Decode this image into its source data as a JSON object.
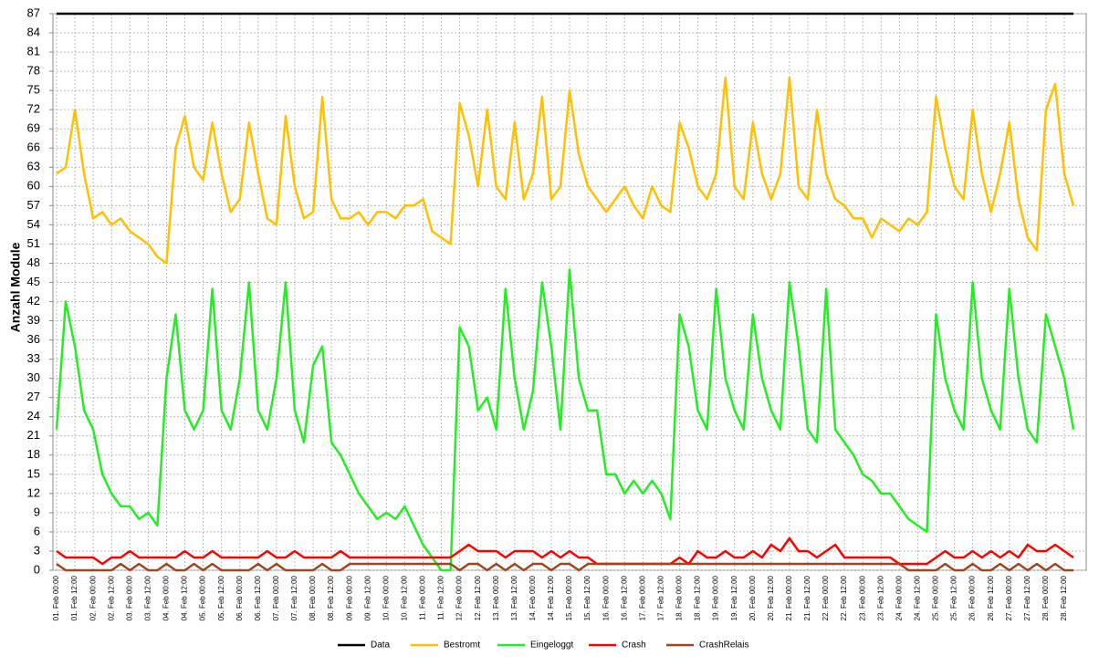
{
  "chart_data": {
    "type": "line",
    "y_label": "Anzahl Module",
    "x": [
      "01. Feb 00:00",
      null,
      "01. Feb 12:00",
      null,
      "02. Feb 00:00",
      null,
      "02. Feb 12:00",
      null,
      "03. Feb 00:00",
      null,
      "03. Feb 12:00",
      null,
      "04. Feb 00:00",
      null,
      "04. Feb 12:00",
      null,
      "05. Feb 00:00",
      null,
      "05. Feb 12:00",
      null,
      "06. Feb 00:00",
      null,
      "06. Feb 12:00",
      null,
      "07. Feb 00:00",
      null,
      "07. Feb 12:00",
      null,
      "08. Feb 00:00",
      null,
      "08. Feb 12:00",
      null,
      "09. Feb 00:00",
      null,
      "09. Feb 12:00",
      null,
      "10. Feb 00:00",
      null,
      "10. Feb 12:00",
      null,
      "11. Feb 00:00",
      null,
      "11. Feb 12:00",
      null,
      "12. Feb 00:00",
      null,
      "12. Feb 12:00",
      null,
      "13. Feb 00:00",
      null,
      "13. Feb 12:00",
      null,
      "14. Feb 00:00",
      null,
      "14. Feb 12:00",
      null,
      "15. Feb 00:00",
      null,
      "15. Feb 12:00",
      null,
      "16. Feb 00:00",
      null,
      "16. Feb 12:00",
      null,
      "17. Feb 00:00",
      null,
      "17. Feb 12:00",
      null,
      "18. Feb 00:00",
      null,
      "18. Feb 12:00",
      null,
      "19. Feb 00:00",
      null,
      "19. Feb 12:00",
      null,
      "20. Feb 00:00",
      null,
      "20. Feb 12:00",
      null,
      "21. Feb 00:00",
      null,
      "21. Feb 12:00",
      null,
      "22. Feb 00:00",
      null,
      "22. Feb 12:00",
      null,
      "23. Feb 00:00",
      null,
      "23. Feb 12:00",
      null,
      "24. Feb 00:00",
      null,
      "24. Feb 12:00",
      null,
      "25. Feb 00:00",
      null,
      "25. Feb 12:00",
      null,
      "26. Feb 00:00",
      null,
      "26. Feb 12:00",
      null,
      "27. Feb 00:00",
      null,
      "27. Feb 12:00",
      null,
      "28. Feb 00:00",
      null,
      "28. Feb 12:00",
      null
    ],
    "ylim": [
      0,
      87
    ],
    "yticks": [
      0,
      3,
      6,
      9,
      12,
      15,
      18,
      21,
      24,
      27,
      30,
      33,
      36,
      39,
      42,
      45,
      48,
      51,
      54,
      57,
      60,
      63,
      66,
      69,
      72,
      75,
      78,
      81,
      84,
      87
    ],
    "grid": true,
    "legend": "bottom",
    "series": [
      {
        "name": "Data",
        "color": "#000000",
        "values": [
          87,
          87,
          87,
          87,
          87,
          87,
          87,
          87,
          87,
          87,
          87,
          87,
          87,
          87,
          87,
          87,
          87,
          87,
          87,
          87,
          87,
          87,
          87,
          87,
          87,
          87,
          87,
          87,
          87,
          87,
          87,
          87,
          87,
          87,
          87,
          87,
          87,
          87,
          87,
          87,
          87,
          87,
          87,
          87,
          87,
          87,
          87,
          87,
          87,
          87,
          87,
          87,
          87,
          87,
          87,
          87,
          87,
          87,
          87,
          87,
          87,
          87,
          87,
          87,
          87,
          87,
          87,
          87,
          87,
          87,
          87,
          87,
          87,
          87,
          87,
          87,
          87,
          87,
          87,
          87,
          87,
          87,
          87,
          87,
          87,
          87,
          87,
          87,
          87,
          87,
          87,
          87,
          87,
          87,
          87,
          87,
          87,
          87,
          87,
          87,
          87,
          87,
          87,
          87,
          87,
          87,
          87,
          87,
          87,
          87,
          87,
          87
        ]
      },
      {
        "name": "Bestromt",
        "color": "#ffc000",
        "values": [
          62,
          63,
          72,
          62,
          55,
          56,
          54,
          55,
          53,
          52,
          51,
          49,
          48,
          66,
          71,
          63,
          61,
          70,
          62,
          56,
          58,
          70,
          62,
          55,
          54,
          71,
          60,
          55,
          56,
          74,
          58,
          55,
          55,
          56,
          54,
          56,
          56,
          55,
          57,
          57,
          58,
          53,
          52,
          51,
          73,
          68,
          60,
          72,
          60,
          58,
          70,
          58,
          62,
          74,
          58,
          60,
          75,
          65,
          60,
          58,
          56,
          58,
          60,
          57,
          55,
          60,
          57,
          56,
          70,
          66,
          60,
          58,
          62,
          77,
          60,
          58,
          70,
          62,
          58,
          62,
          77,
          60,
          58,
          72,
          62,
          58,
          57,
          55,
          55,
          52,
          55,
          54,
          53,
          55,
          54,
          56,
          74,
          66,
          60,
          58,
          72,
          62,
          56,
          62,
          70,
          58,
          52,
          50,
          72,
          76,
          62,
          57
        ]
      },
      {
        "name": "Eingeloggt",
        "color": "#22ee22",
        "values": [
          22,
          42,
          35,
          25,
          22,
          15,
          12,
          10,
          10,
          8,
          9,
          7,
          30,
          40,
          25,
          22,
          25,
          44,
          25,
          22,
          30,
          45,
          25,
          22,
          30,
          45,
          25,
          20,
          32,
          35,
          20,
          18,
          15,
          12,
          10,
          8,
          9,
          8,
          10,
          7,
          4,
          2,
          0,
          0,
          38,
          35,
          25,
          27,
          22,
          44,
          30,
          22,
          28,
          45,
          35,
          22,
          47,
          30,
          25,
          25,
          15,
          15,
          12,
          14,
          12,
          14,
          12,
          8,
          40,
          35,
          25,
          22,
          44,
          30,
          25,
          22,
          40,
          30,
          25,
          22,
          45,
          35,
          22,
          20,
          44,
          22,
          20,
          18,
          15,
          14,
          12,
          12,
          10,
          8,
          7,
          6,
          40,
          30,
          25,
          22,
          45,
          30,
          25,
          22,
          44,
          30,
          22,
          20,
          40,
          35,
          30,
          22
        ]
      },
      {
        "name": "Crash",
        "color": "#ff0000",
        "values": [
          3,
          2,
          2,
          2,
          2,
          1,
          2,
          2,
          3,
          2,
          2,
          2,
          2,
          2,
          3,
          2,
          2,
          3,
          2,
          2,
          2,
          2,
          2,
          3,
          2,
          2,
          3,
          2,
          2,
          2,
          2,
          3,
          2,
          2,
          2,
          2,
          2,
          2,
          2,
          2,
          2,
          2,
          2,
          2,
          3,
          4,
          3,
          3,
          3,
          2,
          3,
          3,
          3,
          2,
          3,
          2,
          3,
          2,
          2,
          1,
          1,
          1,
          1,
          1,
          1,
          1,
          1,
          1,
          2,
          1,
          3,
          2,
          2,
          3,
          2,
          2,
          3,
          2,
          4,
          3,
          5,
          3,
          3,
          2,
          3,
          4,
          2,
          2,
          2,
          2,
          2,
          2,
          1,
          1,
          1,
          1,
          2,
          3,
          2,
          2,
          3,
          2,
          3,
          2,
          3,
          2,
          4,
          3,
          3,
          4,
          3,
          2
        ]
      },
      {
        "name": "CrashRelais",
        "color": "#a0461e",
        "values": [
          1,
          0,
          0,
          0,
          0,
          0,
          0,
          1,
          0,
          1,
          0,
          0,
          1,
          0,
          0,
          1,
          0,
          1,
          0,
          0,
          0,
          0,
          1,
          0,
          1,
          0,
          0,
          0,
          0,
          1,
          0,
          0,
          1,
          1,
          1,
          1,
          1,
          1,
          1,
          1,
          1,
          1,
          1,
          1,
          0,
          1,
          1,
          0,
          1,
          0,
          1,
          0,
          1,
          1,
          0,
          1,
          1,
          0,
          1,
          1,
          1,
          1,
          1,
          1,
          1,
          1,
          1,
          1,
          1,
          1,
          1,
          1,
          1,
          1,
          1,
          1,
          1,
          1,
          1,
          1,
          1,
          1,
          1,
          1,
          1,
          1,
          1,
          1,
          1,
          1,
          1,
          1,
          1,
          0,
          0,
          0,
          0,
          1,
          0,
          0,
          1,
          0,
          0,
          1,
          0,
          1,
          0,
          1,
          0,
          1,
          0,
          0
        ]
      }
    ]
  }
}
